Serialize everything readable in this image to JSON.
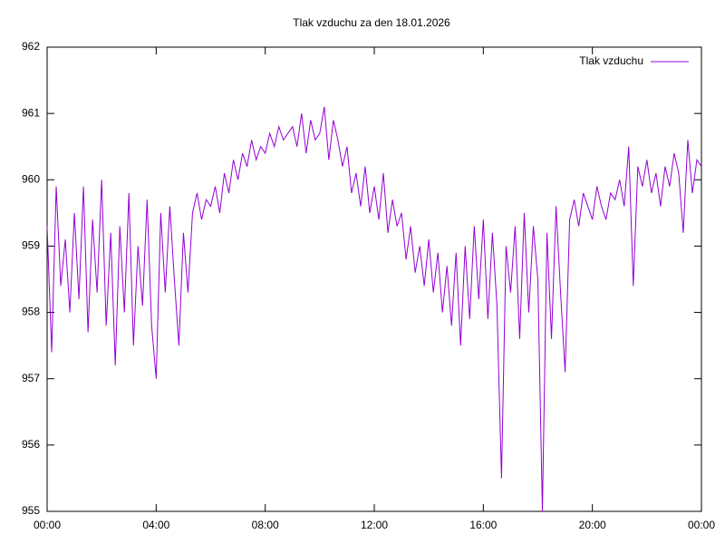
{
  "chart_data": {
    "type": "line",
    "title": "Tlak vzduchu za den 18.01.2026",
    "x": [
      0,
      10,
      20,
      30,
      40,
      50,
      60,
      70,
      80,
      90,
      100,
      110,
      120,
      130,
      140,
      150,
      160,
      170,
      180,
      190,
      200,
      210,
      220,
      230,
      240,
      250,
      260,
      270,
      280,
      290,
      300,
      310,
      320,
      330,
      340,
      350,
      360,
      370,
      380,
      390,
      400,
      410,
      420,
      430,
      440,
      450,
      460,
      470,
      480,
      490,
      500,
      510,
      520,
      530,
      540,
      550,
      560,
      570,
      580,
      590,
      600,
      610,
      620,
      630,
      640,
      650,
      660,
      670,
      680,
      690,
      700,
      710,
      720,
      730,
      740,
      750,
      760,
      770,
      780,
      790,
      800,
      810,
      820,
      830,
      840,
      850,
      860,
      870,
      880,
      890,
      900,
      910,
      920,
      930,
      940,
      950,
      960,
      970,
      980,
      990,
      1000,
      1010,
      1020,
      1030,
      1040,
      1050,
      1060,
      1070,
      1080,
      1090,
      1100,
      1110,
      1120,
      1130,
      1140,
      1150,
      1160,
      1170,
      1180,
      1190,
      1200,
      1210,
      1220,
      1230,
      1240,
      1250,
      1260,
      1270,
      1280,
      1290,
      1300,
      1310,
      1320,
      1330,
      1340,
      1350,
      1360,
      1370,
      1380,
      1390,
      1400,
      1410,
      1420,
      1430,
      1440
    ],
    "series": [
      {
        "name": "Tlak vzduchu",
        "color": "#9400d3",
        "values": [
          959.3,
          957.4,
          959.9,
          958.4,
          959.1,
          958.0,
          959.5,
          958.2,
          959.9,
          957.7,
          959.4,
          958.3,
          960.0,
          957.8,
          959.2,
          957.2,
          959.3,
          958.0,
          959.8,
          957.5,
          959.0,
          958.1,
          959.7,
          957.8,
          957.0,
          959.5,
          958.3,
          959.6,
          958.5,
          957.5,
          959.2,
          958.3,
          959.5,
          959.8,
          959.4,
          959.7,
          959.6,
          959.9,
          959.5,
          960.1,
          959.8,
          960.3,
          960.0,
          960.4,
          960.2,
          960.6,
          960.3,
          960.5,
          960.4,
          960.7,
          960.5,
          960.8,
          960.6,
          960.7,
          960.8,
          960.5,
          961.0,
          960.4,
          960.9,
          960.6,
          960.7,
          961.1,
          960.3,
          960.9,
          960.6,
          960.2,
          960.5,
          959.8,
          960.1,
          959.6,
          960.2,
          959.5,
          959.9,
          959.4,
          960.1,
          959.2,
          959.7,
          959.3,
          959.5,
          958.8,
          959.3,
          958.6,
          959.0,
          958.4,
          959.1,
          958.3,
          958.9,
          958.0,
          958.7,
          957.8,
          958.9,
          957.5,
          959.0,
          957.9,
          959.3,
          958.2,
          959.4,
          957.9,
          959.2,
          958.1,
          955.5,
          959.0,
          958.3,
          959.3,
          957.6,
          959.5,
          958.0,
          959.3,
          958.5,
          955.0,
          959.2,
          957.6,
          959.6,
          958.3,
          957.1,
          959.4,
          959.7,
          959.3,
          959.8,
          959.6,
          959.4,
          959.9,
          959.6,
          959.4,
          959.8,
          959.7,
          960.0,
          959.6,
          960.5,
          958.4,
          960.2,
          959.9,
          960.3,
          959.8,
          960.1,
          959.6,
          960.2,
          959.9,
          960.4,
          960.1,
          959.2,
          960.6,
          959.8,
          960.3,
          960.2
        ]
      }
    ],
    "xlim": [
      0,
      1440
    ],
    "xticks": [
      {
        "value": 0,
        "label": "00:00"
      },
      {
        "value": 240,
        "label": "04:00"
      },
      {
        "value": 480,
        "label": "08:00"
      },
      {
        "value": 720,
        "label": "12:00"
      },
      {
        "value": 960,
        "label": "16:00"
      },
      {
        "value": 1200,
        "label": "20:00"
      },
      {
        "value": 1440,
        "label": "00:00"
      }
    ],
    "ylim": [
      955,
      962
    ],
    "yticks": [
      955,
      956,
      957,
      958,
      959,
      960,
      961,
      962
    ],
    "legend": "top-right"
  }
}
